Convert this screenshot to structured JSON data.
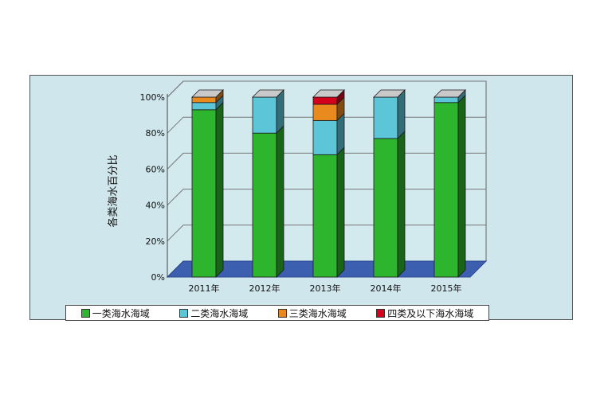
{
  "chart_data": {
    "type": "bar",
    "stacked": true,
    "title": "",
    "ylabel": "各类海水百分比",
    "xlabel": "",
    "ylim": [
      0,
      100
    ],
    "yticks": [
      "0%",
      "20%",
      "40%",
      "60%",
      "80%",
      "100%"
    ],
    "categories": [
      "2011年",
      "2012年",
      "2013年",
      "2014年",
      "2015年"
    ],
    "series": [
      {
        "name": "一类海水海域",
        "color": "#2db52d",
        "values": [
          93,
          80,
          68,
          77,
          97
        ]
      },
      {
        "name": "二类海水海域",
        "color": "#5cc6d8",
        "values": [
          4,
          20,
          19,
          23,
          3
        ]
      },
      {
        "name": "三类海水海域",
        "color": "#e88a1e",
        "values": [
          3,
          0,
          9,
          0,
          0
        ]
      },
      {
        "name": "四类及以下海水海域",
        "color": "#d4001c",
        "values": [
          0,
          0,
          4,
          0,
          0
        ]
      }
    ],
    "grid": true,
    "legend_position": "bottom"
  }
}
